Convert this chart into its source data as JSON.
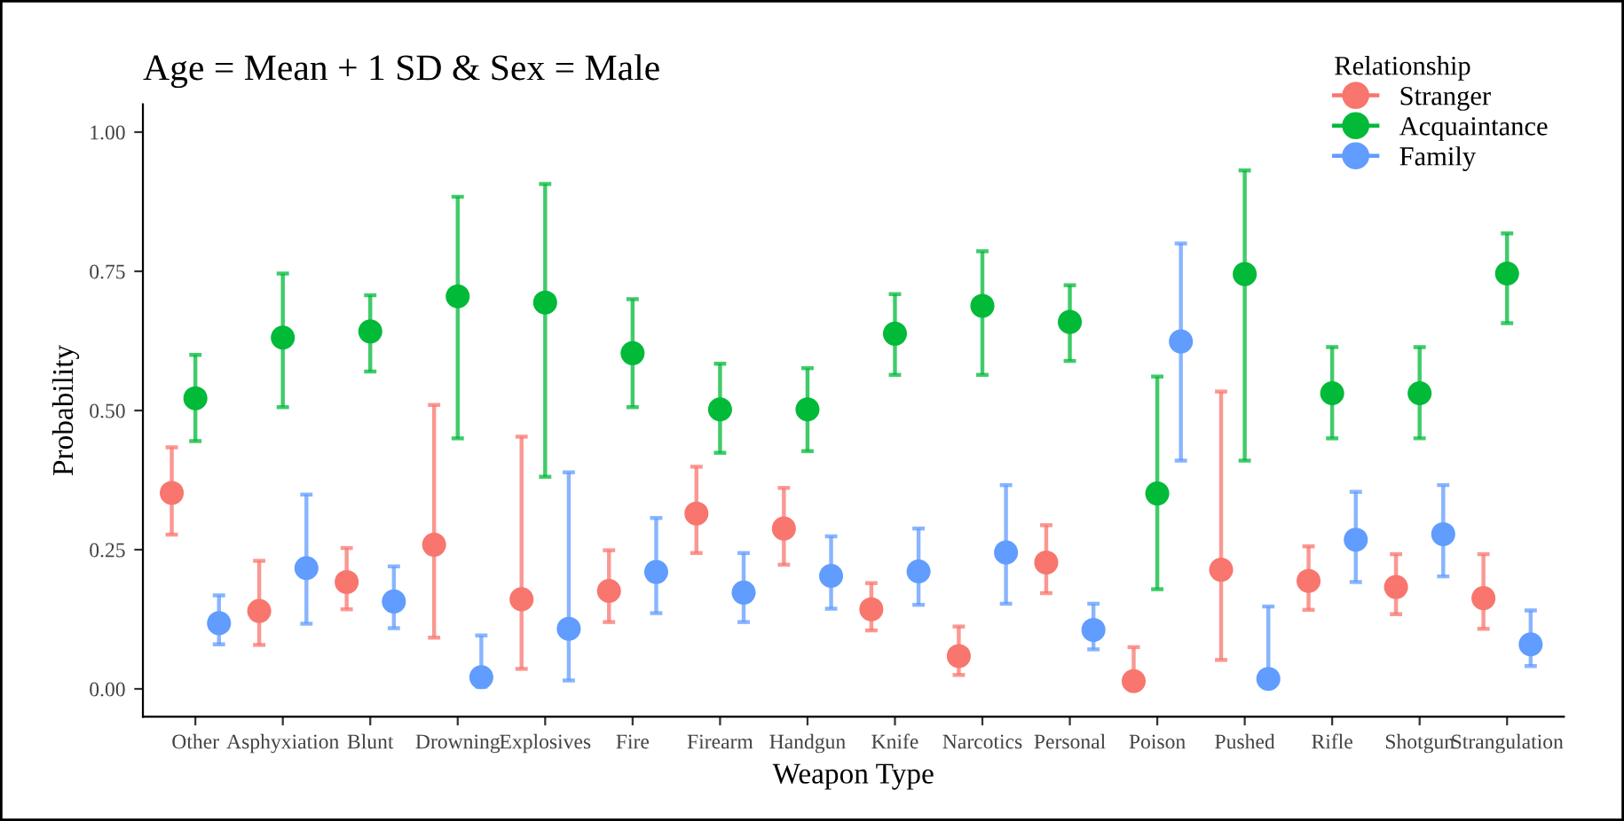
{
  "chart_data": {
    "type": "scatter",
    "title": "Age = Mean + 1 SD & Sex = Male",
    "xlabel": "Weapon Type",
    "ylabel": "Probability",
    "legend_title": "Relationship",
    "categories": [
      "Other",
      "Asphyxiation",
      "Blunt",
      "Drowning",
      "Explosives",
      "Fire",
      "Firearm",
      "Handgun",
      "Knife",
      "Narcotics",
      "Personal",
      "Poison",
      "Pushed",
      "Rifle",
      "Shotgun",
      "Strangulation"
    ],
    "series": [
      {
        "name": "Stranger",
        "color": "#f8766d",
        "values": [
          0.352,
          0.14,
          0.192,
          0.259,
          0.161,
          0.176,
          0.315,
          0.288,
          0.143,
          0.059,
          0.227,
          0.014,
          0.214,
          0.194,
          0.183,
          0.163
        ],
        "errors": [
          [
            0.277,
            0.434
          ],
          [
            0.079,
            0.23
          ],
          [
            0.143,
            0.253
          ],
          [
            0.092,
            0.51
          ],
          [
            0.036,
            0.453
          ],
          [
            0.12,
            0.249
          ],
          [
            0.244,
            0.399
          ],
          [
            0.223,
            0.361
          ],
          [
            0.105,
            0.19
          ],
          [
            0.025,
            0.112
          ],
          [
            0.172,
            0.294
          ],
          [
            0.002,
            0.075
          ],
          [
            0.052,
            0.534
          ],
          [
            0.142,
            0.256
          ],
          [
            0.134,
            0.242
          ],
          [
            0.108,
            0.242
          ]
        ]
      },
      {
        "name": "Acquaintance",
        "color": "#00ba38",
        "values": [
          0.522,
          0.631,
          0.642,
          0.705,
          0.694,
          0.603,
          0.502,
          0.502,
          0.638,
          0.688,
          0.659,
          0.351,
          0.745,
          0.531,
          0.531,
          0.746
        ],
        "errors": [
          [
            0.445,
            0.6
          ],
          [
            0.506,
            0.746
          ],
          [
            0.57,
            0.707
          ],
          [
            0.45,
            0.884
          ],
          [
            0.381,
            0.907
          ],
          [
            0.506,
            0.7
          ],
          [
            0.424,
            0.584
          ],
          [
            0.427,
            0.576
          ],
          [
            0.564,
            0.709
          ],
          [
            0.564,
            0.786
          ],
          [
            0.589,
            0.725
          ],
          [
            0.179,
            0.561
          ],
          [
            0.41,
            0.931
          ],
          [
            0.45,
            0.614
          ],
          [
            0.45,
            0.614
          ],
          [
            0.657,
            0.818
          ]
        ]
      },
      {
        "name": "Family",
        "color": "#619cff",
        "values": [
          0.118,
          0.217,
          0.157,
          0.021,
          0.108,
          0.21,
          0.173,
          0.203,
          0.211,
          0.245,
          0.106,
          0.624,
          0.018,
          0.268,
          0.278,
          0.08
        ],
        "errors": [
          [
            0.08,
            0.168
          ],
          [
            0.117,
            0.349
          ],
          [
            0.109,
            0.22
          ],
          [
            0.004,
            0.096
          ],
          [
            0.015,
            0.389
          ],
          [
            0.136,
            0.307
          ],
          [
            0.12,
            0.244
          ],
          [
            0.144,
            0.274
          ],
          [
            0.151,
            0.288
          ],
          [
            0.153,
            0.366
          ],
          [
            0.071,
            0.153
          ],
          [
            0.41,
            0.8
          ],
          [
            0.003,
            0.148
          ],
          [
            0.192,
            0.354
          ],
          [
            0.202,
            0.366
          ],
          [
            0.041,
            0.141
          ]
        ]
      }
    ],
    "ylim": [
      -0.05,
      1.05
    ],
    "yticks": [
      {
        "value": 0,
        "label": "0.00"
      },
      {
        "value": 0.25,
        "label": "0.25"
      },
      {
        "value": 0.5,
        "label": "0.50"
      },
      {
        "value": 0.75,
        "label": "0.75"
      },
      {
        "value": 1,
        "label": "1.00"
      }
    ],
    "marker": "circle",
    "grid": false,
    "legend": "top right"
  }
}
